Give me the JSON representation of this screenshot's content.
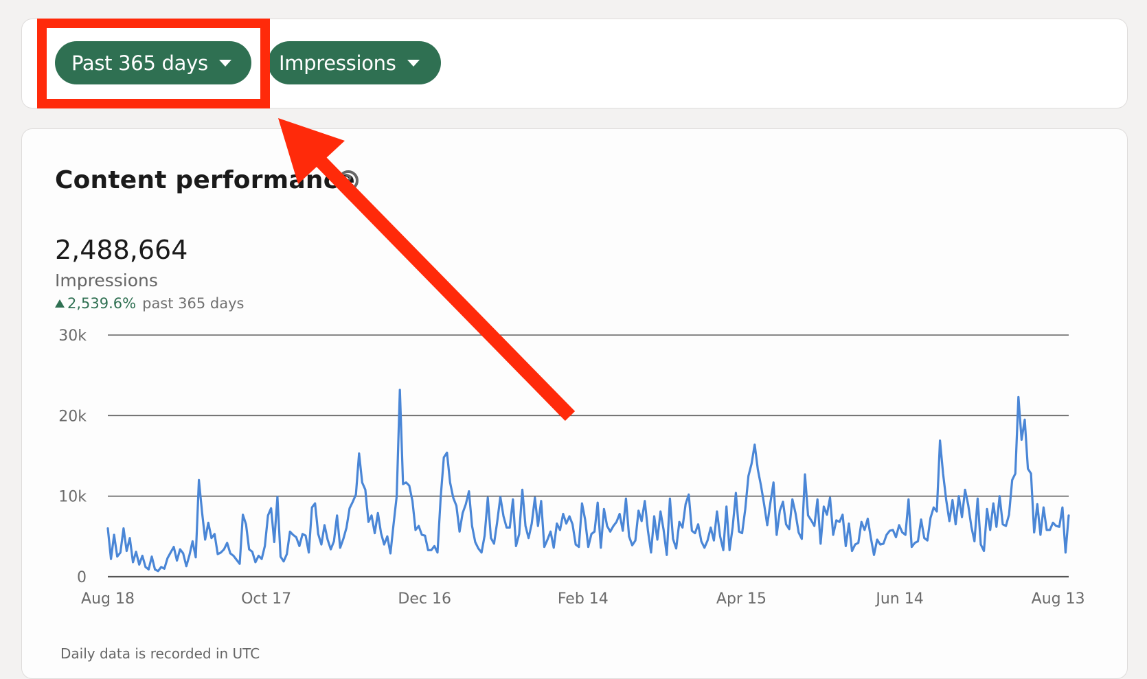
{
  "filters": {
    "range": {
      "label": "Past 365 days",
      "icon": "caret-down-icon"
    },
    "metric": {
      "label": "Impressions",
      "icon": "caret-down-icon"
    }
  },
  "card": {
    "title": "Content performance",
    "help_icon": "question-circle-icon",
    "total": "2,488,664",
    "total_label": "Impressions",
    "change_pct": "2,539.6%",
    "change_period": "past 365 days",
    "footnote": "Daily data is recorded in UTC"
  },
  "colors": {
    "accent_green": "#2f7052",
    "line_blue": "#4a86d6",
    "annotation_red": "#ff2a0a"
  },
  "chart_data": {
    "type": "line",
    "title": "Content performance",
    "xlabel": "",
    "ylabel": "Impressions",
    "ylim": [
      0,
      30000
    ],
    "grid": true,
    "legend": null,
    "y_ticks": [
      "0",
      "10k",
      "20k",
      "30k"
    ],
    "y_tick_values": [
      0,
      10000,
      20000,
      30000
    ],
    "x_ticks": [
      "Aug 18",
      "Oct 17",
      "Dec 16",
      "Feb 14",
      "Apr 15",
      "Jun 14",
      "Aug 13"
    ],
    "x_tick_day_index": [
      0,
      60,
      120,
      180,
      240,
      300,
      360
    ],
    "series": [
      {
        "name": "Impressions",
        "sample_interval_days": 2,
        "values": [
          6000,
          2200,
          5200,
          2500,
          3000,
          6000,
          3200,
          4800,
          1800,
          3100,
          1500,
          2600,
          1200,
          900,
          2500,
          900,
          700,
          1200,
          1000,
          2300,
          3000,
          3700,
          2000,
          3400,
          2900,
          1300,
          2700,
          4400,
          2400,
          12000,
          8000,
          4600,
          6700,
          4800,
          5300,
          2800,
          3000,
          3400,
          4200,
          2900,
          2600,
          2100,
          1600,
          7700,
          6500,
          3400,
          3100,
          1800,
          2600,
          2200,
          3800,
          7600,
          8500,
          4300,
          9900,
          2500,
          1900,
          2800,
          5600,
          5200,
          4900,
          3800,
          5300,
          5100,
          3000,
          8600,
          9100,
          5300,
          4000,
          6400,
          4600,
          3400,
          4400,
          7600,
          3600,
          4700,
          6100,
          8500,
          9300,
          10200,
          15300,
          11700,
          10800,
          6800,
          7600,
          5400,
          7900,
          5400,
          4000,
          5000,
          2900,
          6500,
          10000,
          23200,
          11500,
          11700,
          11300,
          9400,
          5800,
          6300,
          5200,
          5100,
          3300,
          3300,
          3800,
          3000,
          9800,
          14800,
          15400,
          11700,
          9800,
          8800,
          5600,
          7900,
          9000,
          10600,
          6300,
          4300,
          3500,
          3000,
          5100,
          9800,
          4800,
          4100,
          6800,
          9900,
          7500,
          6100,
          6100,
          9600,
          3800,
          5300,
          10800,
          6300,
          4800,
          6600,
          9800,
          6300,
          9400,
          3700,
          4600,
          5600,
          3600,
          6600,
          5800,
          7800,
          6600,
          7500,
          6500,
          4000,
          3700,
          9100,
          7100,
          3700,
          5300,
          5600,
          9200,
          3600,
          8400,
          6300,
          5600,
          6300,
          6800,
          7800,
          5700,
          9700,
          5000,
          3900,
          4500,
          8200,
          6900,
          9400,
          5700,
          3000,
          7500,
          4600,
          8100,
          5800,
          2700,
          9700,
          4700,
          3500,
          6800,
          6100,
          9000,
          10200,
          5700,
          5400,
          6500,
          4400,
          3600,
          4500,
          6100,
          4500,
          8100,
          5000,
          3300,
          8700,
          3300,
          6200,
          10400,
          5600,
          5400,
          8400,
          12500,
          14000,
          16400,
          13300,
          11300,
          9000,
          6400,
          9200,
          11700,
          5200,
          8200,
          9300,
          6500,
          5900,
          9600,
          7900,
          5500,
          4700,
          12700,
          7600,
          7000,
          6300,
          9600,
          4100,
          8700,
          7700,
          9800,
          5200,
          7000,
          6800,
          7700,
          3800,
          6600,
          3200,
          4000,
          4200,
          6800,
          5800,
          7200,
          4800,
          2700,
          4600,
          4000,
          4100,
          5200,
          5700,
          5800,
          4900,
          6400,
          5500,
          5200,
          9600,
          3700,
          4200,
          4400,
          7100,
          4800,
          4500,
          7300,
          8600,
          8100,
          16900,
          12800,
          9500,
          6900,
          9500,
          6500,
          10000,
          7400,
          10800,
          8900,
          6200,
          4400,
          9700,
          4000,
          3200,
          8400,
          5800,
          9100,
          6200,
          10000,
          6500,
          6300,
          7700,
          12000,
          12800,
          22300,
          17000,
          19500,
          13400,
          12800,
          5500,
          9000,
          5200,
          8600,
          5800,
          5800,
          6700,
          6300,
          6200,
          8600,
          3000,
          7600
        ]
      }
    ]
  },
  "annotations": [
    {
      "type": "highlight-box",
      "target": "Past 365 days dropdown"
    },
    {
      "type": "arrow",
      "target": "Past 365 days dropdown"
    }
  ]
}
